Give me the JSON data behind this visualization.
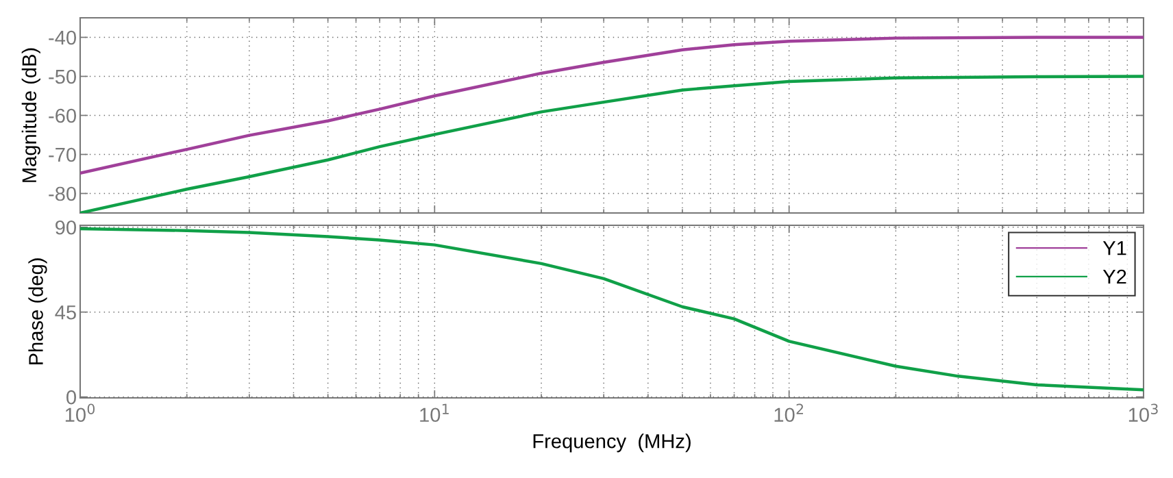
{
  "chart_data": [
    {
      "type": "line",
      "ylabel": "Magnitude (dB)",
      "log": "x",
      "grid": true,
      "tick_labels": "y",
      "legend": "bottom right",
      "x": [
        1,
        2,
        3,
        5,
        7,
        10,
        20,
        30,
        50,
        70,
        100,
        200,
        500,
        1000
      ],
      "xlim": [
        1,
        1000
      ],
      "xticks": [
        {
          "value": 1,
          "label": null
        },
        {
          "value": 10,
          "label": null
        },
        {
          "value": 100,
          "label": null
        },
        {
          "value": 1000,
          "label": null
        }
      ],
      "ylim": [
        -85,
        -35
      ],
      "yticks": [
        -80,
        -70,
        -60,
        -50,
        -40
      ],
      "series": [
        {
          "name": "Y1",
          "color": "#a0409a",
          "values": [
            -74.8,
            -68.7,
            -65.1,
            -61.4,
            -58.4,
            -55.0,
            -49.2,
            -46.4,
            -43.2,
            -41.9,
            -41.0,
            -40.2,
            -40.0,
            -40.0
          ]
        },
        {
          "name": "Y2",
          "color": "#10a048",
          "values": [
            -85.0,
            -78.9,
            -75.7,
            -71.4,
            -68.0,
            -64.9,
            -59.1,
            -56.6,
            -53.5,
            -52.4,
            -51.3,
            -50.4,
            -50.1,
            -50.0
          ]
        }
      ]
    },
    {
      "type": "line",
      "ylabel": "Phase (deg)",
      "xlabel": "Frequency  (MHz)",
      "log": "x",
      "grid": true,
      "x": [
        1,
        2,
        3,
        5,
        7,
        10,
        20,
        30,
        50,
        70,
        100,
        200,
        300,
        500,
        1000
      ],
      "xlim": [
        1,
        1000
      ],
      "xticks": [
        {
          "value": 1,
          "label": "10$^{0}$"
        },
        {
          "value": 10,
          "label": "10$^{1}$"
        },
        {
          "value": 100,
          "label": "10$^{2}$"
        },
        {
          "value": 1000,
          "label": "10$^{3}$"
        }
      ],
      "ylim": [
        -0.5,
        91
      ],
      "yticks": [
        0,
        45,
        90
      ],
      "series": [
        {
          "color": "#10a048",
          "values": [
            89.2,
            88.2,
            87.2,
            85.0,
            83.2,
            80.6,
            70.7,
            62.7,
            47.8,
            41.4,
            29.5,
            16.3,
            11.0,
            6.4,
            3.8
          ]
        }
      ]
    }
  ]
}
